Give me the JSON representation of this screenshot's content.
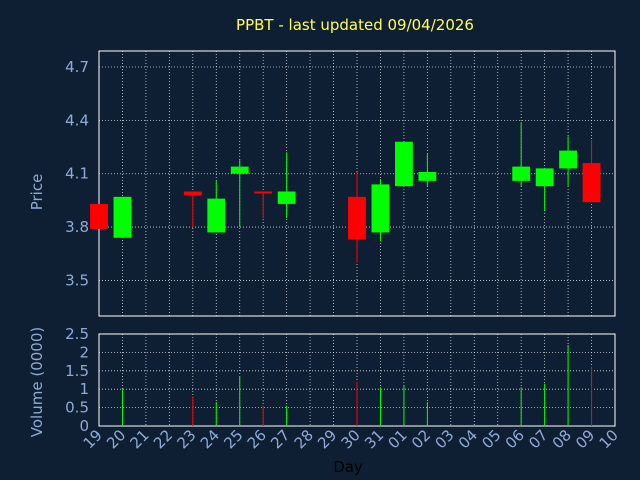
{
  "colors": {
    "background": "#0f1f33",
    "axis_text": "#8faad6",
    "title": "#ffff55",
    "up": "#00ff00",
    "down": "#ff0000",
    "grid": "#ffffff"
  },
  "chart_data": [
    {
      "type": "candlestick",
      "title": "PPBT - last updated 09/04/2026",
      "ylabel": "Price",
      "xlabel": "",
      "ylim": [
        3.3,
        4.79
      ],
      "yticks": [
        "3.5",
        "3.8",
        "4.1",
        "4.4",
        "4.7"
      ],
      "grid": true,
      "categories": [
        "19",
        "20",
        "21",
        "22",
        "23",
        "24",
        "25",
        "26",
        "27",
        "28",
        "29",
        "30",
        "31",
        "01",
        "02",
        "03",
        "04",
        "05",
        "06",
        "07",
        "08",
        "09",
        "10"
      ],
      "candles": [
        {
          "day": "19",
          "open": 3.93,
          "close": 3.79,
          "high": 3.93,
          "low": 3.79
        },
        {
          "day": "20",
          "open": 3.74,
          "close": 3.97,
          "high": 3.97,
          "low": 3.74
        },
        {
          "day": "23",
          "open": 4.0,
          "close": 3.98,
          "high": 4.0,
          "low": 3.8
        },
        {
          "day": "24",
          "open": 3.77,
          "close": 3.96,
          "high": 4.06,
          "low": 3.77
        },
        {
          "day": "25",
          "open": 4.1,
          "close": 4.14,
          "high": 4.18,
          "low": 3.8
        },
        {
          "day": "26",
          "open": 4.0,
          "close": 3.99,
          "high": 4.0,
          "low": 3.85
        },
        {
          "day": "27",
          "open": 3.93,
          "close": 4.0,
          "high": 4.22,
          "low": 3.85
        },
        {
          "day": "30",
          "open": 3.97,
          "close": 3.73,
          "high": 4.11,
          "low": 3.6
        },
        {
          "day": "31",
          "open": 3.77,
          "close": 4.04,
          "high": 4.07,
          "low": 3.72
        },
        {
          "day": "01",
          "open": 4.03,
          "close": 4.28,
          "high": 4.28,
          "low": 4.03
        },
        {
          "day": "02",
          "open": 4.06,
          "close": 4.11,
          "high": 4.21,
          "low": 4.03
        },
        {
          "day": "06",
          "open": 4.06,
          "close": 4.14,
          "high": 4.39,
          "low": 4.03
        },
        {
          "day": "07",
          "open": 4.03,
          "close": 4.13,
          "high": 4.13,
          "low": 3.89
        },
        {
          "day": "08",
          "open": 4.13,
          "close": 4.23,
          "high": 4.31,
          "low": 4.03
        },
        {
          "day": "09",
          "open": 4.16,
          "close": 3.94,
          "high": 4.29,
          "low": 3.94
        }
      ]
    },
    {
      "type": "bar",
      "title": "",
      "ylabel": "Volume (0000)",
      "xlabel": "Day",
      "ylim": [
        0,
        2.5
      ],
      "yticks": [
        "0",
        "0.5",
        "1",
        "1.5",
        "2",
        "2.5"
      ],
      "grid": true,
      "categories": [
        "19",
        "20",
        "21",
        "22",
        "23",
        "24",
        "25",
        "26",
        "27",
        "28",
        "29",
        "30",
        "31",
        "01",
        "02",
        "03",
        "04",
        "05",
        "06",
        "07",
        "08",
        "09",
        "10"
      ],
      "bars": [
        {
          "day": "20",
          "value": 1.0,
          "color": "up"
        },
        {
          "day": "23",
          "value": 0.8,
          "color": "down"
        },
        {
          "day": "24",
          "value": 0.65,
          "color": "up"
        },
        {
          "day": "25",
          "value": 1.35,
          "color": "up"
        },
        {
          "day": "26",
          "value": 0.55,
          "color": "down"
        },
        {
          "day": "27",
          "value": 0.55,
          "color": "up"
        },
        {
          "day": "30",
          "value": 1.2,
          "color": "down"
        },
        {
          "day": "31",
          "value": 1.05,
          "color": "up"
        },
        {
          "day": "01",
          "value": 1.1,
          "color": "up"
        },
        {
          "day": "02",
          "value": 0.65,
          "color": "up"
        },
        {
          "day": "06",
          "value": 1.05,
          "color": "up"
        },
        {
          "day": "07",
          "value": 1.15,
          "color": "up"
        },
        {
          "day": "08",
          "value": 2.2,
          "color": "up"
        },
        {
          "day": "09",
          "value": 1.6,
          "color": "down"
        }
      ]
    }
  ]
}
